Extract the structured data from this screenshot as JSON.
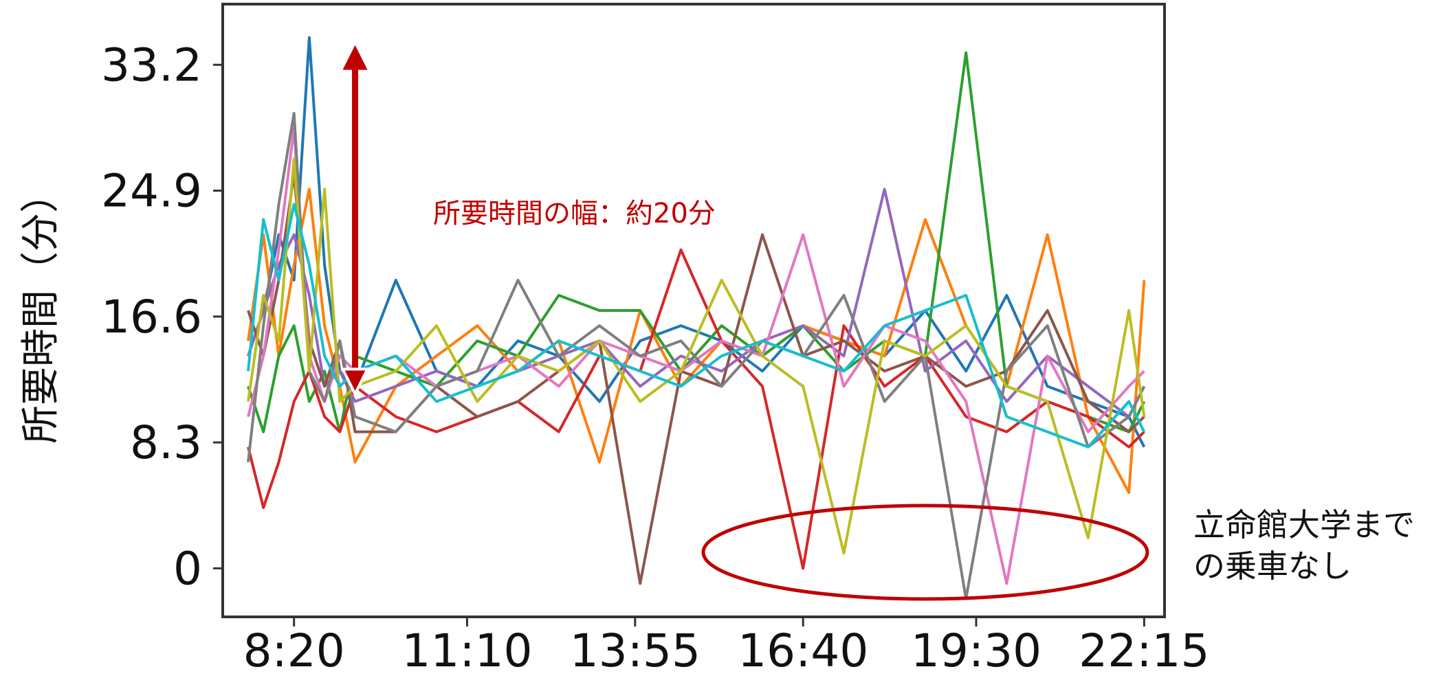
{
  "chart_data": {
    "type": "line",
    "title": "",
    "xlabel": "",
    "ylabel": "所要時間（分）",
    "x_ticks": [
      "8:20",
      "11:10",
      "13:55",
      "16:40",
      "19:30",
      "22:15"
    ],
    "y_ticks": [
      "0",
      "8.3",
      "16.6",
      "24.9",
      "33.2"
    ],
    "xlim": [
      "7:10",
      "22:35"
    ],
    "ylim": [
      -3.2,
      37.2
    ],
    "grid": false,
    "legend": "none",
    "annotations": {
      "range_text": "所要時間の幅：約20分",
      "range_from": 34.5,
      "range_to": 11.5,
      "range_x": "9:20",
      "no_ride_text_line1": "立命館大学まで",
      "no_ride_text_line2": "の乗車なし",
      "arrow_color": "#c00000",
      "ellipse_color": "#c00000"
    },
    "x": [
      "7:35",
      "7:50",
      "8:05",
      "8:20",
      "8:35",
      "8:50",
      "9:05",
      "9:20",
      "10:00",
      "10:40",
      "11:20",
      "12:00",
      "12:40",
      "13:20",
      "14:00",
      "14:40",
      "15:20",
      "16:00",
      "16:40",
      "17:20",
      "18:00",
      "18:40",
      "19:20",
      "20:00",
      "20:40",
      "21:20",
      "22:00",
      "22:15"
    ],
    "series": [
      {
        "color": "#1f77b4",
        "values": [
          14,
          17,
          22,
          19,
          35,
          20,
          13,
          12,
          19,
          13,
          12,
          15,
          14,
          11,
          15,
          16,
          15,
          13,
          16,
          15,
          14,
          17,
          13,
          18,
          12,
          11,
          10,
          8
        ]
      },
      {
        "color": "#ff7f0e",
        "values": [
          15,
          22,
          14,
          20,
          25,
          16,
          12,
          7,
          12,
          14,
          16,
          13,
          15,
          7,
          17,
          12,
          15,
          14,
          16,
          15,
          14,
          23,
          16,
          12,
          22,
          10,
          5,
          19
        ]
      },
      {
        "color": "#2ca02c",
        "values": [
          12,
          9,
          14,
          16,
          11,
          13,
          9,
          14,
          13,
          12,
          15,
          14,
          18,
          17,
          17,
          13,
          16,
          14,
          16,
          13,
          15,
          14,
          34,
          12,
          11,
          10,
          9,
          11
        ]
      },
      {
        "color": "#d62728",
        "values": [
          8,
          4,
          7,
          11,
          13,
          10,
          9,
          12,
          10,
          9,
          10,
          11,
          9,
          14,
          13,
          21,
          15,
          12,
          0,
          16,
          12,
          14,
          10,
          9,
          11,
          10,
          8,
          9
        ]
      },
      {
        "color": "#9467bd",
        "values": [
          14,
          17,
          20,
          22,
          18,
          12,
          13,
          11,
          12,
          13,
          12,
          13,
          14,
          15,
          12,
          14,
          13,
          15,
          16,
          14,
          25,
          13,
          15,
          11,
          14,
          12,
          10,
          12
        ]
      },
      {
        "color": "#8c564b",
        "values": [
          17,
          14,
          19,
          26,
          15,
          12,
          15,
          9,
          9,
          12,
          10,
          11,
          13,
          15,
          -1,
          13,
          12,
          22,
          14,
          15,
          13,
          14,
          12,
          13,
          17,
          11,
          9,
          10
        ]
      },
      {
        "color": "#e377c2",
        "values": [
          10,
          14,
          21,
          29,
          14,
          11,
          14,
          13,
          14,
          12,
          13,
          14,
          12,
          15,
          14,
          13,
          15,
          14,
          22,
          12,
          16,
          15,
          11,
          -1,
          14,
          9,
          12,
          13
        ]
      },
      {
        "color": "#7f7f7f",
        "values": [
          7,
          16,
          24,
          30,
          13,
          11,
          15,
          10,
          9,
          12,
          13,
          19,
          14,
          16,
          14,
          15,
          12,
          15,
          14,
          18,
          11,
          14,
          -2,
          13,
          16,
          8,
          10,
          12
        ]
      },
      {
        "color": "#bcbd22",
        "values": [
          11,
          18,
          15,
          27,
          13,
          25,
          11,
          12,
          13,
          16,
          11,
          14,
          13,
          15,
          11,
          13,
          19,
          14,
          12,
          1,
          15,
          14,
          16,
          12,
          11,
          2,
          17,
          10
        ]
      },
      {
        "color": "#17becf",
        "values": [
          13,
          23,
          19,
          24,
          20,
          14,
          12,
          13,
          14,
          11,
          12,
          13,
          15,
          14,
          13,
          12,
          14,
          15,
          14,
          13,
          16,
          17,
          18,
          10,
          9,
          8,
          11,
          9
        ]
      }
    ]
  }
}
